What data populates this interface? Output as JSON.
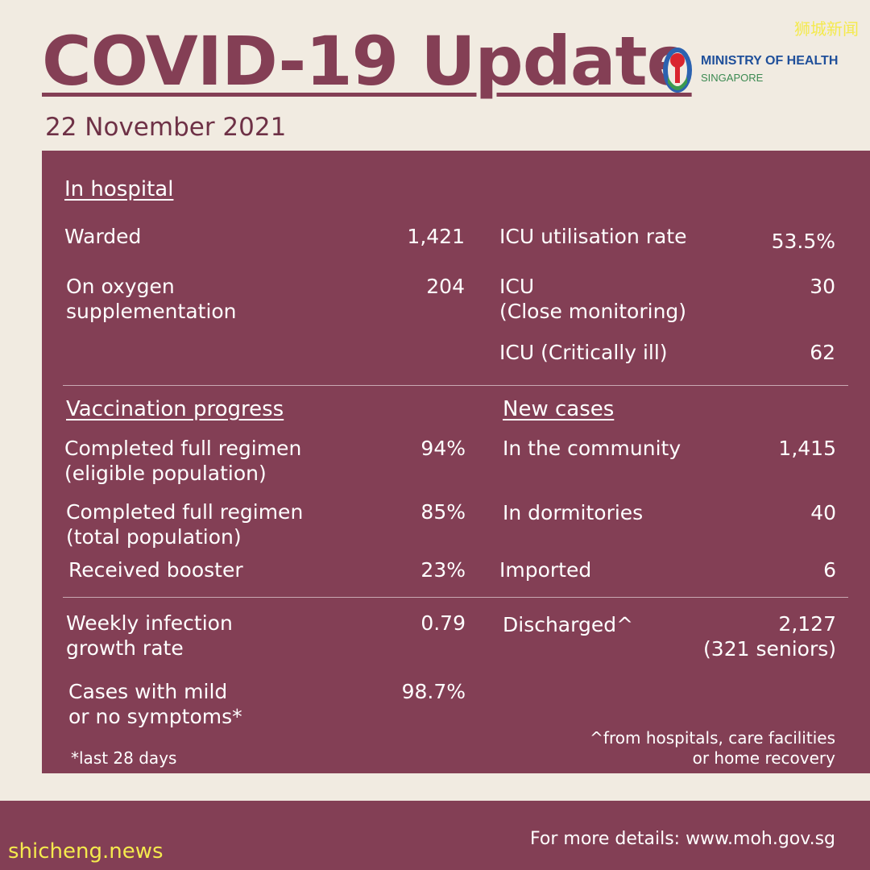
{
  "header": {
    "title": "COVID-19 Update",
    "date": "22 November 2021",
    "ministry_line1": "MINISTRY OF HEALTH",
    "ministry_line2": "SINGAPORE",
    "watermark_top": "狮城新闻"
  },
  "hospital": {
    "heading": "In hospital",
    "warded_label": "Warded",
    "warded_value": "1,421",
    "oxygen_label": "On oxygen\nsupplementation",
    "oxygen_value": "204",
    "icu_rate_label": "ICU utilisation rate",
    "icu_rate_value": "53.5%",
    "icu_close_label": "ICU\n(Close monitoring)",
    "icu_close_value": "30",
    "icu_critical_label": "ICU (Critically ill)",
    "icu_critical_value": "62"
  },
  "vaccination": {
    "heading": "Vaccination progress",
    "eligible_label": "Completed full regimen\n(eligible population)",
    "eligible_value": "94%",
    "total_label": "Completed full regimen\n(total population)",
    "total_value": "85%",
    "booster_label": "Received booster",
    "booster_value": "23%"
  },
  "new_cases": {
    "heading": "New cases",
    "community_label": "In the community",
    "community_value": "1,415",
    "dormitories_label": "In dormitories",
    "dormitories_value": "40",
    "imported_label": "Imported",
    "imported_value": "6"
  },
  "other": {
    "growth_label": "Weekly infection\ngrowth rate",
    "growth_value": "0.79",
    "mild_label": "Cases with mild\nor no symptoms*",
    "mild_value": "98.7%",
    "discharged_label": "Discharged^",
    "discharged_value": "2,127\n(321 seniors)",
    "footnote_left": "*last 28 days",
    "footnote_right": "^from hospitals, care facilities\nor home recovery"
  },
  "footer": {
    "details": "For more details: www.moh.gov.sg",
    "watermark_bottom": "shicheng.news"
  },
  "colors": {
    "panel": "#833f55",
    "background": "#f1ebe1",
    "title": "#843f55"
  }
}
